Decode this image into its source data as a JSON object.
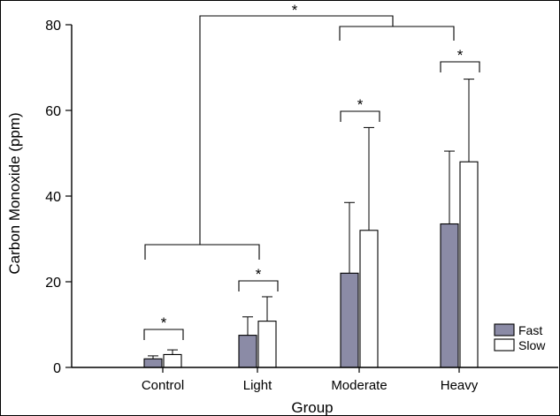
{
  "chart_data": {
    "type": "bar",
    "title": "",
    "xlabel": "Group",
    "ylabel": "Carbon Monoxide (ppm)",
    "ylim": [
      0,
      80
    ],
    "yticks": [
      0,
      20,
      40,
      60,
      80
    ],
    "categories": [
      "Control",
      "Light",
      "Moderate",
      "Heavy"
    ],
    "series": [
      {
        "name": "Fast",
        "color": "#8b8ba6",
        "values": [
          2,
          7.5,
          22,
          33.5
        ],
        "error_upper": [
          0.7,
          4.3,
          16.5,
          17
        ]
      },
      {
        "name": "Slow",
        "color": "#ffffff",
        "values": [
          3,
          10.8,
          32,
          48
        ],
        "error_upper": [
          1.1,
          5.7,
          24,
          19.3
        ]
      }
    ],
    "legend": {
      "position": "bottom-right",
      "labels": [
        "Fast",
        "Slow"
      ]
    },
    "significance": {
      "pairwise_symbol": "*",
      "pairwise_categories": [
        "Control",
        "Light",
        "Moderate",
        "Heavy"
      ],
      "group_comparison_symbol": "*",
      "group_comparison": [
        [
          "Control",
          "Light"
        ],
        [
          "Moderate",
          "Heavy"
        ]
      ]
    },
    "grid": false
  }
}
